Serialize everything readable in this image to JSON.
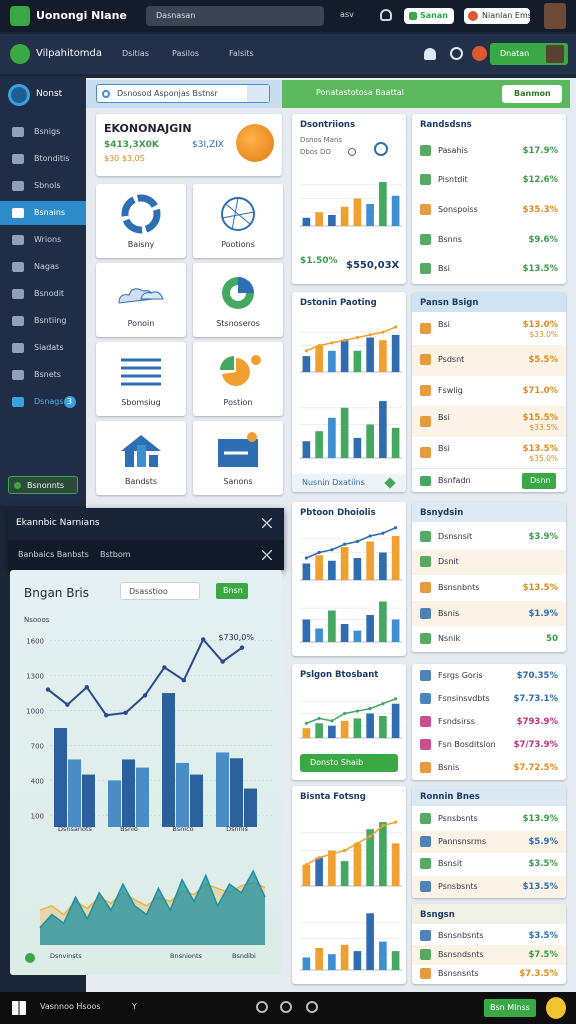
{
  "topbar": {
    "app_name": "Uonongi Nlane",
    "search": "Dasnasan",
    "shortcut": "asv",
    "pill_1": "Sanan",
    "pill_2": "Nianlan Ems"
  },
  "navbar": {
    "brand": "Vilpahitomda",
    "links": [
      "Dsitias",
      "Pasilos",
      "Falsits"
    ],
    "button": "Dnatan"
  },
  "sidebar": {
    "header": "Nonst",
    "items": [
      "Bsnigs",
      "Btonditis",
      "Sbnols",
      "Bsnains",
      "Wrions",
      "Nagas",
      "Bsnodit",
      "Bsntiing",
      "Siadats",
      "Bsnets",
      "Dsnags"
    ],
    "badge": 3,
    "active": 3,
    "footer": "Bsnonnts"
  },
  "toolbar": {
    "search": "Dsnosod Asponjas Bstnsr",
    "banner": "Ponatastotosa Baattal",
    "button": "Banmon"
  },
  "summary": {
    "title": "EKONONAJGIN",
    "value": "$413,3X0K",
    "secondary": "$3I,ZIX",
    "note": "$30 $3,0S"
  },
  "tiles": [
    "Baisny",
    "Pootions",
    "Ponoin",
    "Stsnoseros",
    "Sbomsiug",
    "Postion",
    "Bandsts",
    "Sanons"
  ],
  "chart_cards": [
    {
      "title": "Dsontriions",
      "labels": [
        "Dsnos Mans",
        "Dbos DO"
      ],
      "charts": [
        {
          "ylim": [
            0,
            10
          ],
          "values": [
            1.5,
            2.5,
            2,
            3.5,
            5,
            4,
            8,
            5.5
          ],
          "colors": [
            "#2f6db0",
            "#f0a030",
            "#2f6db0",
            "#f0a030",
            "#f0a030",
            "#3d8fd1",
            "#45a862",
            "#3d8fd1"
          ]
        }
      ],
      "stats": [
        "$1.50%",
        "$550,03X"
      ]
    },
    {
      "title": "Dstonin Paoting",
      "charts": [
        {
          "ylim": [
            0,
            10
          ],
          "values": [
            3,
            5,
            4,
            6,
            4,
            6.5,
            6,
            7
          ],
          "colors": [
            "#2f6db0",
            "#f0a030",
            "#3d8fd1",
            "#2f6db0",
            "#45a862",
            "#2f6db0",
            "#f0a030",
            "#2f6db0"
          ],
          "line": [
            4,
            5,
            5.5,
            6,
            6.5,
            7,
            7.5,
            8.5
          ],
          "line_color": "#f0a030"
        },
        {
          "ylim": [
            0,
            10
          ],
          "values": [
            2.5,
            4,
            6,
            7.5,
            3,
            5,
            8.5,
            4.5
          ],
          "colors": [
            "#2f6db0",
            "#45a862",
            "#3d8fd1",
            "#45a862",
            "#2f6db0",
            "#45a862",
            "#2f6db0",
            "#45a862"
          ]
        }
      ],
      "link": "Nusnin Dxatiins"
    },
    {
      "title": "Pbtoon Dhoiolis",
      "charts": [
        {
          "ylim": [
            0,
            10
          ],
          "values": [
            3,
            4.5,
            3.5,
            6,
            4,
            7,
            5,
            8
          ],
          "colors": [
            "#2f6db0",
            "#f0a030",
            "#2f6db0",
            "#f0a030",
            "#2f6db0",
            "#f0a030",
            "#2f6db0",
            "#f0a030"
          ],
          "line": [
            4,
            5,
            5.5,
            6.5,
            7,
            8,
            8.5,
            9.5
          ],
          "line_color": "#2f6db0"
        },
        {
          "ylim": [
            0,
            10
          ],
          "values": [
            5,
            3,
            7,
            4,
            2.5,
            6,
            9,
            5
          ],
          "colors": [
            "#2f6db0",
            "#3d8fd1",
            "#45a862",
            "#2f6db0",
            "#3d8fd1",
            "#2f6db0",
            "#45a862",
            "#3d8fd1"
          ]
        }
      ]
    },
    {
      "title": "Pslgon Btosbant",
      "charts": [
        {
          "ylim": [
            0,
            10
          ],
          "values": [
            2,
            3,
            2.5,
            3.5,
            4,
            5,
            4.5,
            7
          ],
          "colors": [
            "#f0a030",
            "#45a862",
            "#2f6db0",
            "#f0a030",
            "#45a862",
            "#2f6db0",
            "#45a862",
            "#2f6db0"
          ],
          "line": [
            3,
            4,
            3.5,
            5,
            5.5,
            6,
            7,
            8
          ],
          "line_color": "#45a862"
        }
      ],
      "button": "Donsto Shaib"
    },
    {
      "title": "Bisnta Fotsng",
      "charts": [
        {
          "ylim": [
            0,
            10
          ],
          "values": [
            3,
            4,
            5,
            3.5,
            6,
            8,
            9,
            6
          ],
          "colors": [
            "#f0a030",
            "#2f6db0",
            "#f0a030",
            "#45a862",
            "#f0a030",
            "#45a862",
            "#45a862",
            "#f0a030"
          ],
          "line": [
            3,
            4,
            4.5,
            5,
            6,
            7,
            8.5,
            9
          ],
          "line_color": "#f0a030"
        },
        {
          "ylim": [
            0,
            10
          ],
          "values": [
            2,
            3.5,
            2.5,
            4,
            3,
            9,
            4.5,
            3
          ],
          "colors": [
            "#3d8fd1",
            "#f0a030",
            "#3d8fd1",
            "#f0a030",
            "#2f6db0",
            "#2f6db0",
            "#3d8fd1",
            "#45a862"
          ]
        }
      ]
    }
  ],
  "list_cards": [
    {
      "title": "Randsdsns",
      "rows": [
        {
          "label": "Pasahis",
          "value": "$17.9%",
          "color": "#3a9a4a"
        },
        {
          "label": "Pisntdit",
          "value": "$12.6%",
          "color": "#3a9a4a"
        },
        {
          "label": "Sonspoiss",
          "value": "$35.3%",
          "color": "#e08a1e"
        },
        {
          "label": "Bsnns",
          "value": "$9.6%",
          "color": "#3a9a4a"
        },
        {
          "label": "Bsi",
          "value": "$13.5%",
          "color": "#3a9a4a"
        }
      ]
    },
    {
      "title": "Pansn Bsign",
      "header_color": "#cfe3f3",
      "rows": [
        {
          "label": "Bsi",
          "value": "$13.0%",
          "value_2": "$33.0%",
          "color": "#e08a1e"
        },
        {
          "label": "Psdsnt",
          "value": "$5.5%",
          "color": "#e08a1e"
        },
        {
          "label": "Fswlig",
          "value": "$71.0%",
          "color": "#e08a1e"
        },
        {
          "label": "Bsi",
          "value": "$15.5%",
          "value_2": "$33.5%",
          "color": "#e08a1e"
        },
        {
          "label": "Bsi",
          "value": "$13.5%",
          "value_2": "$35.0%",
          "color": "#e08a1e"
        }
      ],
      "footer": "Bsnfadn",
      "button": "Dsnn"
    },
    {
      "title": "Bsnydsin",
      "header_color": "#dde9f3",
      "rows": [
        {
          "label": "Dsnsnsit",
          "value": "$3.9%",
          "color": "#3a9a4a"
        },
        {
          "label": "Dsnit",
          "color": "#3a9a4a"
        },
        {
          "label": "Bsnsnbnts",
          "value": "$13.5%",
          "color": "#e08a1e"
        },
        {
          "label": "Bsnis",
          "value": "$1.9%",
          "color": "#2f6db0"
        },
        {
          "label": "Nsnik",
          "value": "50",
          "color": "#3a9a4a"
        }
      ]
    },
    {
      "rows": [
        {
          "label": "Fsrgs Goris",
          "value": "$70.35%",
          "color": "#2f6db0"
        },
        {
          "label": "Fsnsinsvdbts",
          "value": "$7.73.1%",
          "color": "#2f6db0"
        },
        {
          "label": "Fsndsirss",
          "value": "$793.9%",
          "color": "#c0307a"
        },
        {
          "label": "Fsn Bosditsion",
          "value": "$7/73.9%",
          "color": "#c0307a"
        },
        {
          "label": "Bsnis",
          "value": "$7.72.5%",
          "color": "#e08a1e"
        }
      ]
    },
    {
      "title": "Ronnin Bnes",
      "header_color": "#dbe9f5",
      "rows": [
        {
          "label": "Psnsbsnts",
          "value": "$13.9%",
          "color": "#3a9a4a"
        },
        {
          "label": "Pannsnsrms",
          "value": "$5.9%",
          "color": "#2f6db0"
        },
        {
          "label": "Bsnsit",
          "value": "$3.5%",
          "color": "#3a9a4a"
        },
        {
          "label": "Psnsbsnts",
          "value": "$13.5%",
          "color": "#2f6db0"
        }
      ]
    },
    {
      "title": "Bsngsn",
      "header_color": "#eef1e4",
      "rows": [
        {
          "label": "Bsnsnbsnts",
          "value": "$3.5%",
          "color": "#2f6db0"
        },
        {
          "label": "Bsnsndsnts",
          "value": "$7.5%",
          "color": "#3a9a4a"
        },
        {
          "label": "Bsnsnsnts",
          "value": "$7.3.5%",
          "color": "#e08a1e"
        }
      ]
    }
  ],
  "overlay": {
    "title": "Ekannbic Narnians",
    "tab_1": "Banbaics Banbsts",
    "tab_2": "Bstbom"
  },
  "big_chart": {
    "title": "Bngan Bris",
    "dropdown": "Dsasstioo",
    "button": "Bnsn",
    "y_label": "Nsooos",
    "annotation": "$730,0%",
    "ylim": [
      0,
      1700
    ],
    "yticks": [
      100,
      400,
      700,
      1000,
      1300,
      1600
    ],
    "categories": [
      "Dsnsanots",
      "Bsnio",
      "Bsnlco",
      "Dsnnis"
    ],
    "values": [
      850,
      580,
      450,
      400,
      580,
      510,
      1150,
      550,
      450,
      640,
      590,
      330
    ],
    "colors": [
      "#2b5f9e",
      "#4a8cc8",
      "#2b5f9e",
      "#4a8cc8",
      "#2b5f9e",
      "#4a8cc8",
      "#2b5f9e",
      "#4a8cc8",
      "#2b5f9e",
      "#4a8cc8",
      "#2b5f9e",
      "#2b5f9e"
    ],
    "line": [
      1180,
      1050,
      1200,
      960,
      980,
      1130,
      1370,
      1260,
      1610,
      1420,
      1540
    ],
    "line_color": "#2b4a8c",
    "area": {
      "ylim": [
        0,
        100
      ],
      "series": [
        {
          "color": "#f0b040",
          "values": [
            40,
            45,
            35,
            50,
            42,
            55,
            48,
            60,
            52,
            45,
            55,
            50,
            62,
            58,
            70,
            65,
            60,
            68,
            72,
            66
          ]
        },
        {
          "color": "#1f8fa0",
          "values": [
            20,
            35,
            25,
            55,
            30,
            60,
            40,
            70,
            45,
            35,
            65,
            40,
            75,
            50,
            80,
            45,
            70,
            60,
            85,
            55
          ]
        }
      ]
    },
    "area_labels": [
      "Dsnvinsts",
      "Bnsnionts",
      "Bsndibi"
    ]
  },
  "taskbar": {
    "search": "Vasnnoo Hsoos",
    "key": "Y",
    "button": "Bsn Mlnss"
  }
}
